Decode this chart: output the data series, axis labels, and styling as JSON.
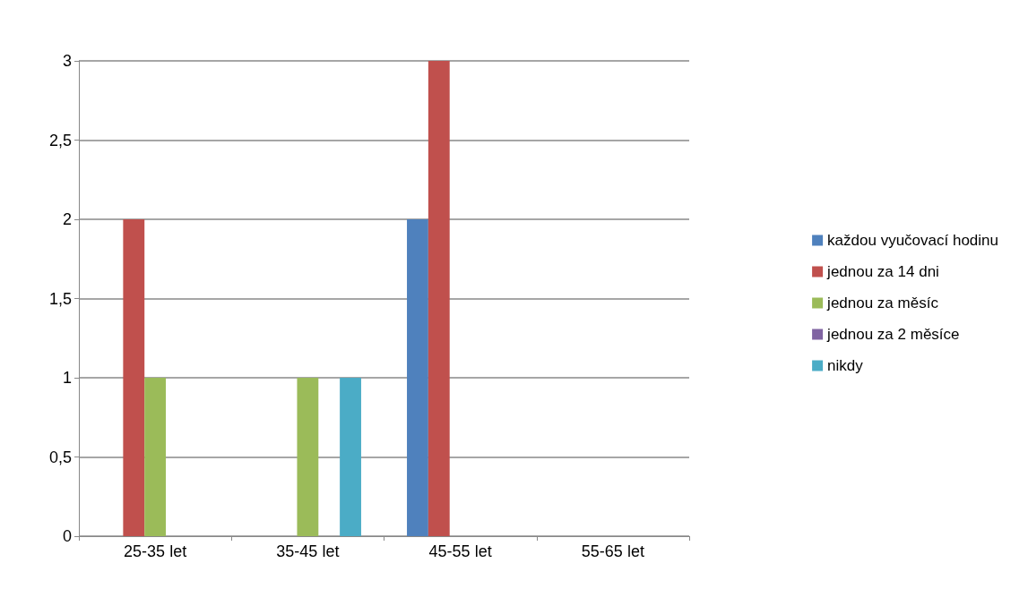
{
  "chart_data": {
    "type": "bar",
    "categories": [
      "25-35 let",
      "35-45 let",
      "45-55 let",
      "55-65 let"
    ],
    "series": [
      {
        "name": "každou vyučovací hodinu",
        "color": "#4f81bd",
        "values": [
          0,
          0,
          2,
          0
        ]
      },
      {
        "name": "jednou za 14 dni",
        "color": "#c0504d",
        "values": [
          2,
          0,
          3,
          0
        ]
      },
      {
        "name": "jednou za měsíc",
        "color": "#9bbb59",
        "values": [
          1,
          1,
          0,
          0
        ]
      },
      {
        "name": "jednou za 2 měsíce",
        "color": "#8064a2",
        "values": [
          0,
          0,
          0,
          0
        ]
      },
      {
        "name": "nikdy",
        "color": "#4bacc6",
        "values": [
          0,
          1,
          0,
          0
        ]
      }
    ],
    "ylim": [
      0,
      3
    ],
    "yticks": [
      0,
      {
        "value": 0.5,
        "label": "0,5"
      },
      1,
      {
        "value": 1.5,
        "label": "1,5"
      },
      2,
      {
        "value": 2.5,
        "label": "2,5"
      },
      3
    ],
    "grid": "y",
    "legend": "right"
  }
}
